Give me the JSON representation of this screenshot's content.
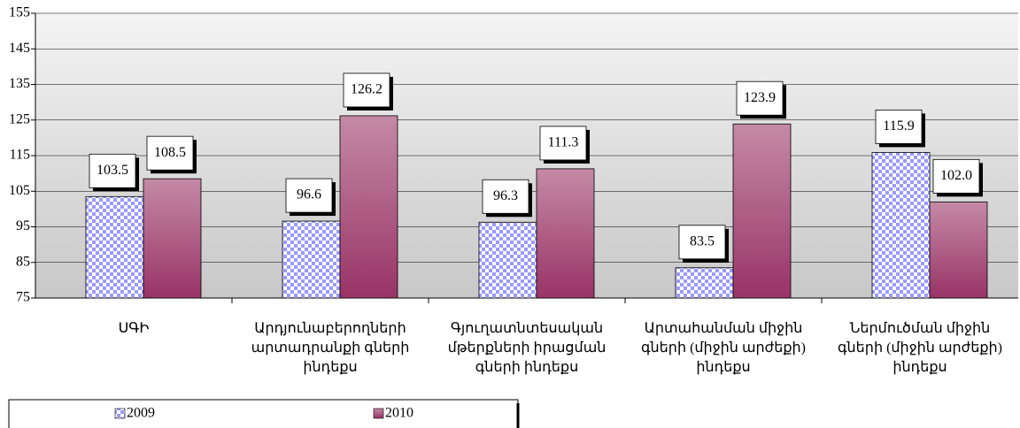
{
  "chart_data": {
    "type": "bar",
    "categories": [
      "ՍԳԻ",
      "Արդյունաբերողների արտադրանքի գների ինդեքս",
      "Գյուղատնտեսական մթերքների իրացման գների ինդեքս",
      "Արտահանման միջին գների (միջին արժեքի) ինդեքս",
      "Ներմուծման միջին գների (միջին արժեքի) ինդեքս"
    ],
    "series": [
      {
        "name": "2009",
        "color": "#9999ff",
        "values": [
          103.5,
          96.6,
          96.3,
          83.5,
          115.9
        ],
        "value_labels": [
          "103.5",
          "96.6",
          "96.3",
          "83.5",
          "115.9"
        ]
      },
      {
        "name": "2010",
        "color": "#993366",
        "values": [
          108.5,
          126.2,
          111.3,
          123.9,
          102.0
        ],
        "value_labels": [
          "108.5",
          "126.2",
          "111.3",
          "123.9",
          "102.0"
        ]
      }
    ],
    "ylim": [
      75,
      155
    ],
    "yticks": [
      75,
      85,
      95,
      105,
      115,
      125,
      135,
      145,
      155
    ],
    "grid": true,
    "legend": "bottom"
  }
}
